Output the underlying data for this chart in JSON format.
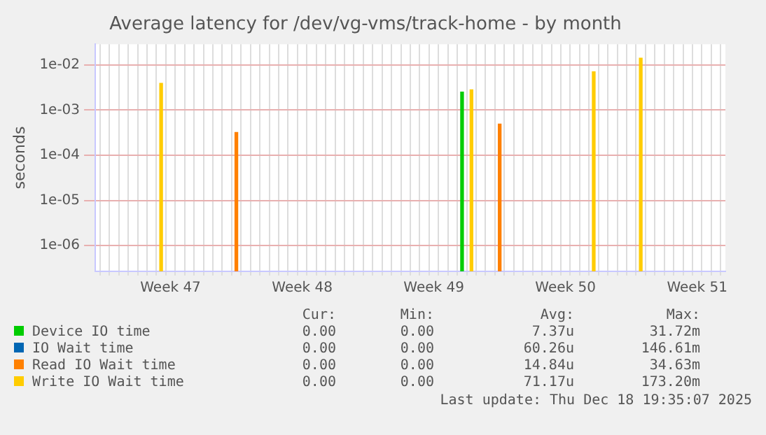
{
  "chart_data": {
    "type": "bar",
    "title": "Average latency for /dev/vg-vms/track-home - by month",
    "ylabel": "seconds",
    "log": "y",
    "grid": true,
    "legend": "bottom",
    "categories": [
      null,
      null,
      null,
      null,
      null,
      null,
      null,
      null,
      "Week 47",
      null,
      null,
      null,
      null,
      null,
      null,
      null,
      null,
      null,
      null,
      null,
      null,
      null,
      "Week 48",
      null,
      null,
      null,
      null,
      null,
      null,
      null,
      null,
      null,
      null,
      null,
      null,
      null,
      "Week 49",
      null,
      null,
      null,
      null,
      null,
      null,
      null,
      null,
      null,
      null,
      null,
      null,
      null,
      "Week 50",
      null,
      null,
      null,
      null,
      null,
      null,
      null,
      null,
      null,
      null,
      null,
      null,
      null,
      "Week 51",
      null,
      null,
      null
    ],
    "ylim": [
      2.7e-07,
      0.0286
    ],
    "yticks": [
      {
        "value": 1e-06,
        "label": "1e-06"
      },
      {
        "value": 1e-05,
        "label": "1e-05"
      },
      {
        "value": 0.0001,
        "label": "1e-04"
      },
      {
        "value": 0.001,
        "label": "1e-03"
      },
      {
        "value": 0.01,
        "label": "1e-02"
      }
    ],
    "series": [
      {
        "name": "Device IO time",
        "color": "#00cc00",
        "values": [
          null,
          null,
          null,
          null,
          null,
          null,
          null,
          null,
          null,
          null,
          null,
          null,
          null,
          null,
          null,
          null,
          null,
          null,
          null,
          null,
          null,
          null,
          null,
          null,
          null,
          null,
          null,
          null,
          null,
          null,
          null,
          null,
          null,
          null,
          null,
          null,
          null,
          null,
          null,
          0.0025,
          null,
          null,
          null,
          null,
          null,
          null,
          null,
          null,
          null,
          null,
          null,
          null,
          null,
          null,
          null,
          null,
          null,
          null,
          null,
          null,
          null,
          null,
          null,
          null,
          null,
          null,
          null,
          null
        ]
      },
      {
        "name": "IO Wait time",
        "color": "#0066b3",
        "values": [
          null,
          null,
          null,
          null,
          null,
          null,
          null,
          null,
          null,
          null,
          null,
          null,
          null,
          null,
          null,
          null,
          null,
          null,
          null,
          null,
          null,
          null,
          null,
          null,
          null,
          null,
          null,
          null,
          null,
          null,
          null,
          null,
          null,
          null,
          null,
          null,
          null,
          null,
          null,
          null,
          null,
          null,
          null,
          null,
          null,
          null,
          null,
          null,
          null,
          null,
          null,
          null,
          null,
          null,
          null,
          null,
          null,
          null,
          null,
          null,
          null,
          null,
          null,
          null,
          null,
          null,
          null,
          null
        ]
      },
      {
        "name": "Read IO Wait time",
        "color": "#ff8000",
        "values": [
          null,
          null,
          null,
          null,
          null,
          null,
          null,
          null,
          null,
          null,
          null,
          null,
          null,
          null,
          null,
          0.00032,
          null,
          null,
          null,
          null,
          null,
          null,
          null,
          null,
          null,
          null,
          null,
          null,
          null,
          null,
          null,
          null,
          null,
          null,
          null,
          null,
          null,
          null,
          null,
          null,
          null,
          null,
          null,
          0.00049,
          null,
          null,
          null,
          null,
          null,
          null,
          null,
          null,
          null,
          null,
          null,
          null,
          null,
          null,
          null,
          null,
          null,
          null,
          null,
          null,
          null,
          null,
          null,
          null
        ]
      },
      {
        "name": "Write IO Wait time",
        "color": "#ffcc00",
        "values": [
          null,
          null,
          null,
          null,
          null,
          null,
          null,
          0.0039,
          null,
          null,
          null,
          null,
          null,
          null,
          null,
          null,
          null,
          null,
          null,
          null,
          null,
          null,
          null,
          null,
          null,
          null,
          null,
          null,
          null,
          null,
          null,
          null,
          null,
          null,
          null,
          null,
          null,
          null,
          null,
          null,
          0.0028,
          null,
          null,
          null,
          null,
          null,
          null,
          null,
          null,
          null,
          null,
          null,
          null,
          0.007,
          null,
          null,
          null,
          null,
          0.014,
          null,
          null,
          null,
          null,
          null,
          null,
          null,
          null,
          null
        ]
      }
    ],
    "annotations": [
      "Cur:",
      "Min:",
      "Avg:",
      "Max:",
      "0.00",
      "0.00",
      "7.37u",
      "31.72m",
      "0.00",
      "0.00",
      "60.26u",
      "146.61m",
      "0.00",
      "0.00",
      "14.84u",
      "34.63m",
      "0.00",
      "0.00",
      "71.17u",
      "173.20m",
      "Last update: Thu Dec 18 19:35:07 2025"
    ]
  }
}
